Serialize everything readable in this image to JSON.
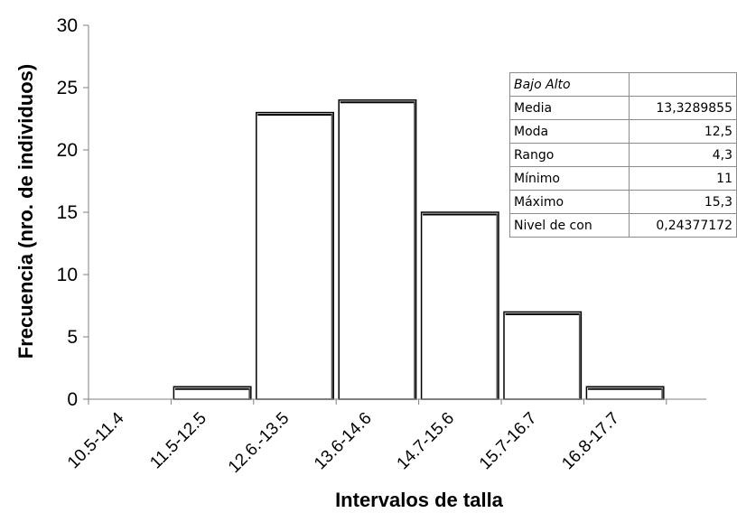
{
  "chart_data": {
    "type": "bar",
    "categories": [
      "10.5-11.4",
      "11.5-12.5",
      "12.6.-13.5",
      "13.6-14.6",
      "14.7-15.6",
      "15.7-16.7",
      "16.8-17.7"
    ],
    "values": [
      0,
      1,
      23,
      24,
      15,
      7,
      1
    ],
    "title": "",
    "xlabel": "Intervalos de talla",
    "ylabel": "Frecuencia (nro. de individuos)",
    "ylim": [
      0,
      30
    ],
    "yticks": [
      0,
      5,
      10,
      15,
      20,
      25,
      30
    ],
    "grid": false,
    "legend": "none",
    "bar_fill": "#ffffff",
    "bar_stroke": "#000000"
  },
  "stats_table": {
    "caption": "Bajo Alto",
    "rows": [
      {
        "label": "Media",
        "value": "13,3289855"
      },
      {
        "label": "Moda",
        "value": "12,5"
      },
      {
        "label": "Rango",
        "value": "4,3"
      },
      {
        "label": "Mínimo",
        "value": "11"
      },
      {
        "label": "Máximo",
        "value": "15,3"
      },
      {
        "label": "Nivel de con",
        "value": "0,24377172"
      }
    ]
  }
}
